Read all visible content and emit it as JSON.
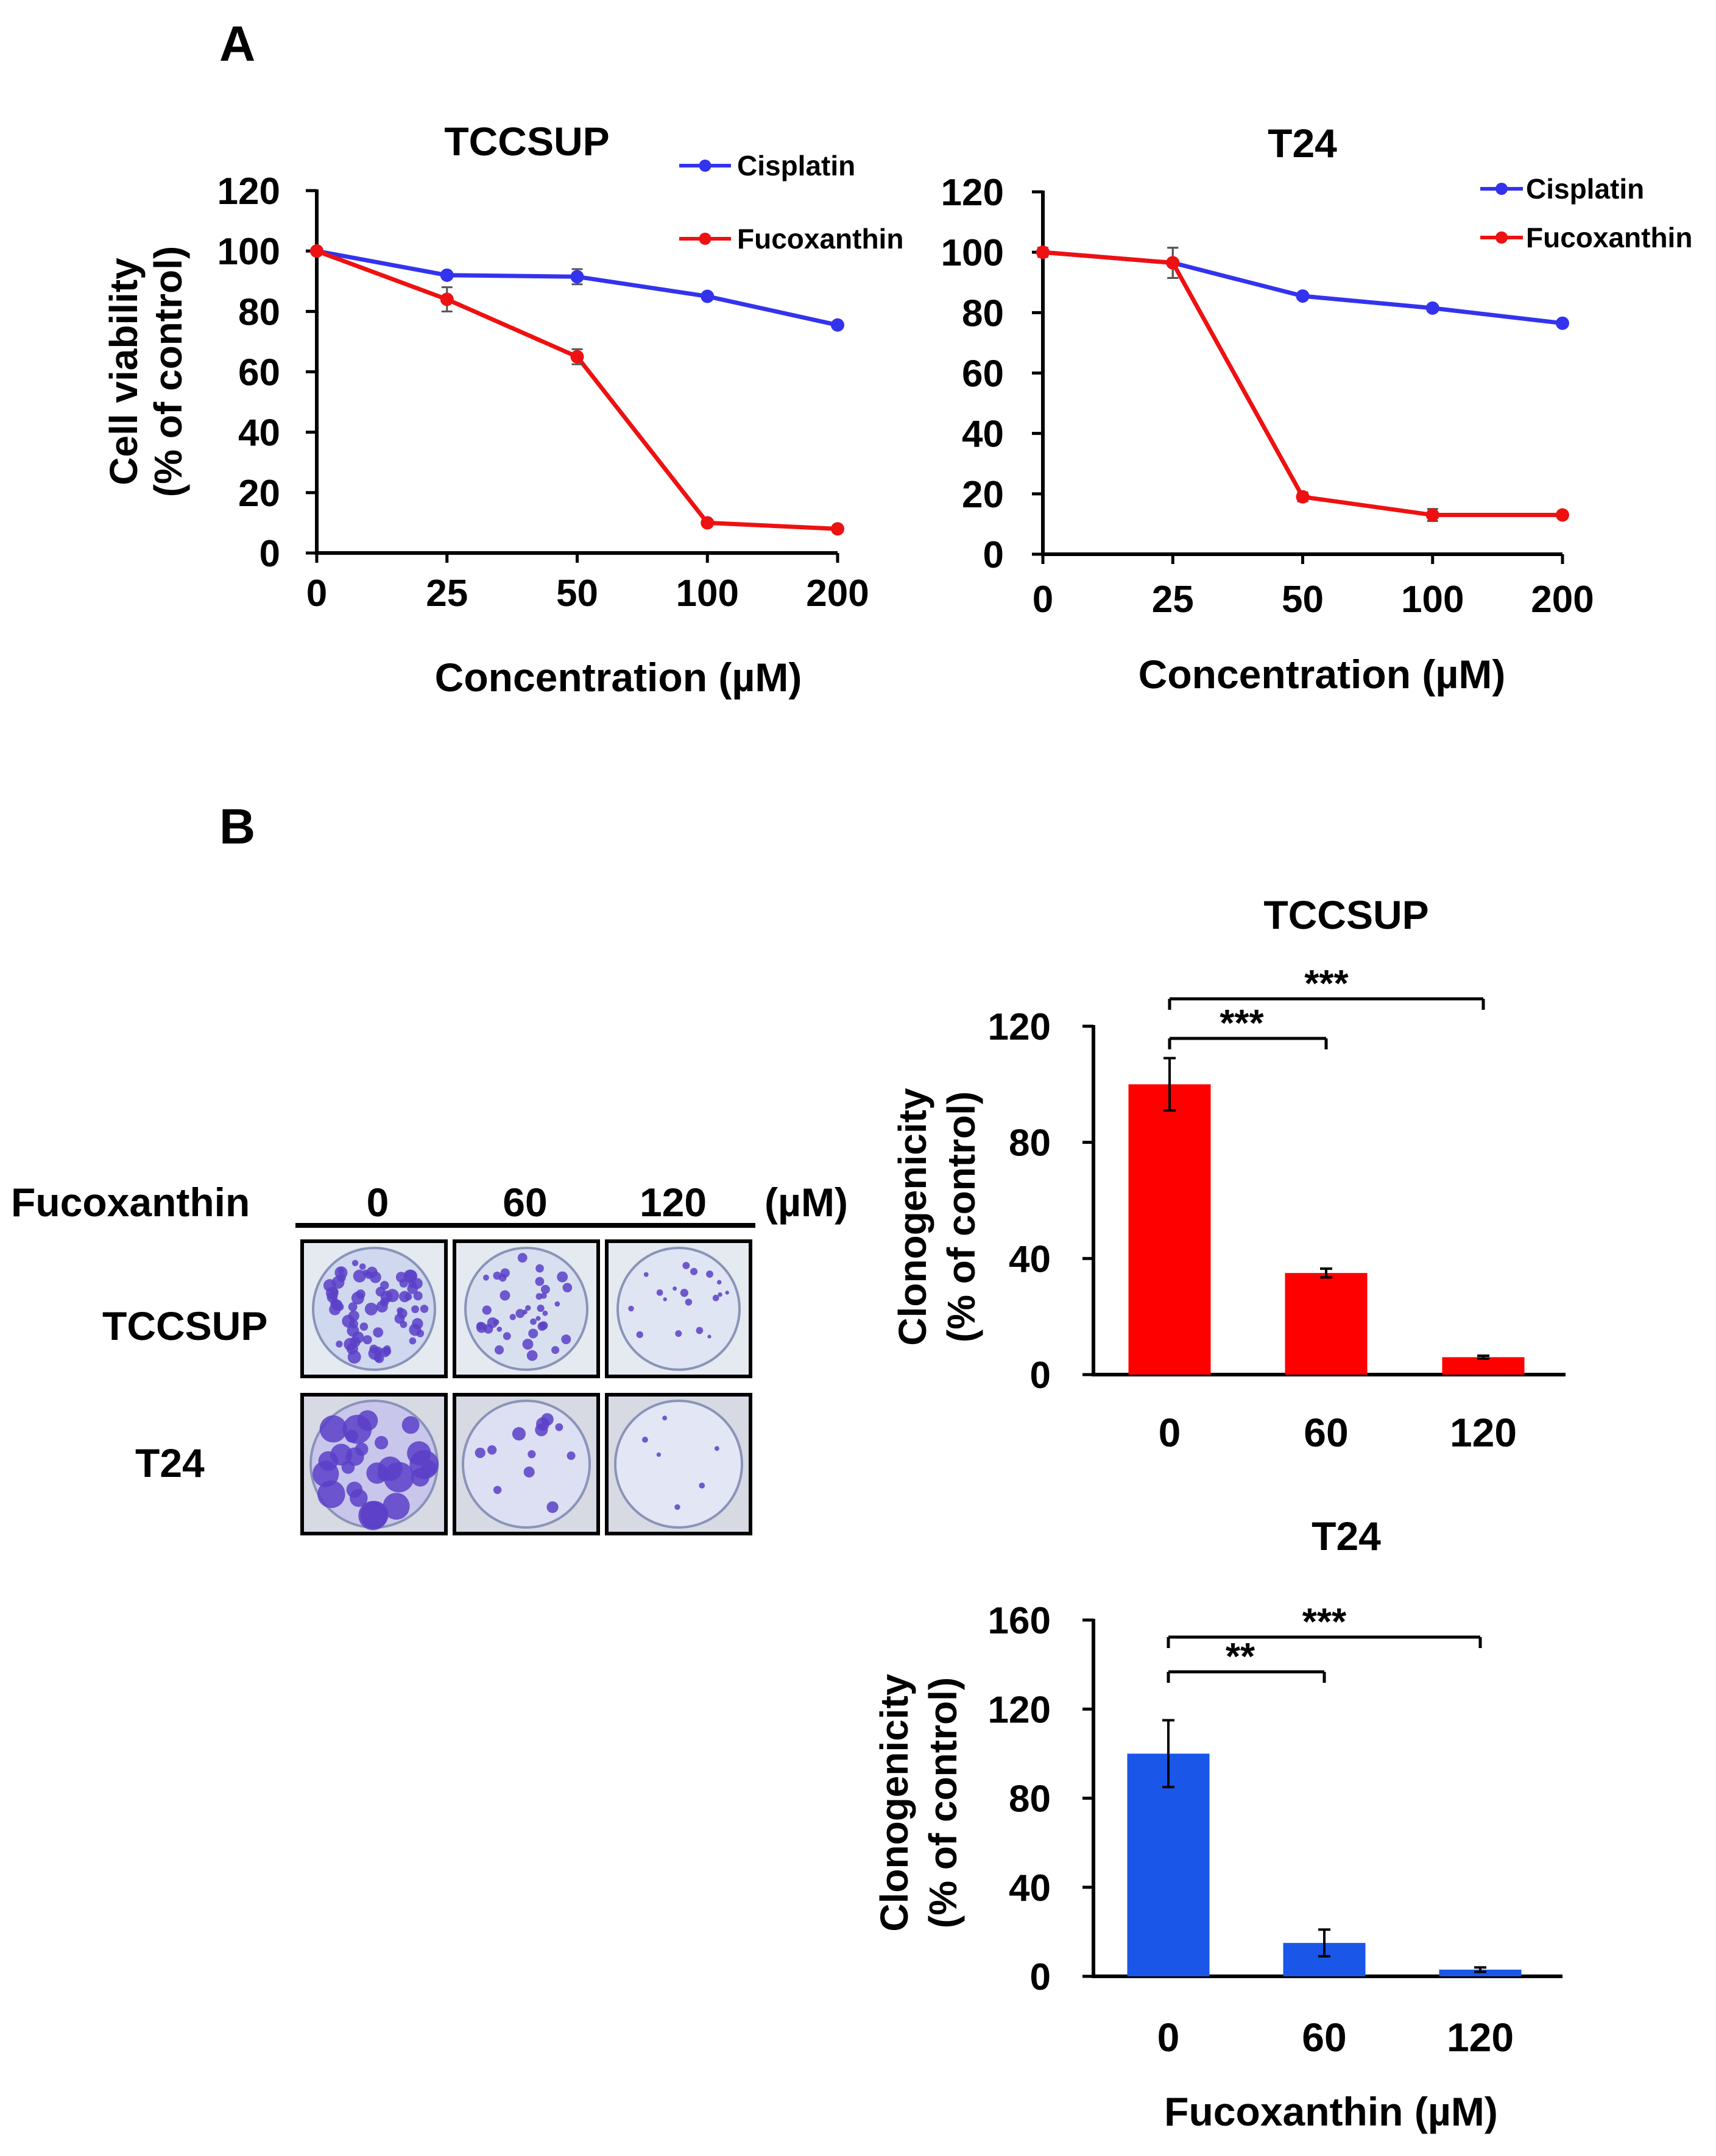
{
  "panels": {
    "a": "A",
    "b": "B"
  },
  "colors": {
    "cisplatin": "#3333ee",
    "fucoxanthin": "#ee1111",
    "bar_red": "#ff0000",
    "bar_blue": "#1a56e8",
    "plate_stain": "#5a3fc8"
  },
  "plate_grid": {
    "treatment_label": "Fucoxanthin",
    "unit": "(µM)",
    "concentrations": [
      "0",
      "60",
      "120"
    ],
    "rows": [
      "TCCSUP",
      "T24"
    ]
  },
  "chart_data": [
    {
      "id": "viability-tccsup",
      "type": "line",
      "title": "TCCSUP",
      "xlabel": "Concentration (µM)",
      "ylabel_line1": "Cell viability",
      "ylabel_line2": "(% of control)",
      "categories": [
        "0",
        "25",
        "50",
        "100",
        "200"
      ],
      "ylim": [
        0,
        120
      ],
      "yticks": [
        "0",
        "20",
        "40",
        "60",
        "80",
        "100",
        "120"
      ],
      "legend_position": "top-right",
      "series": [
        {
          "name": "Cisplatin",
          "color_key": "cisplatin",
          "values": [
            100,
            92,
            91.5,
            85,
            75.5
          ],
          "errors": [
            1,
            1,
            2.5,
            1,
            0.8
          ]
        },
        {
          "name": "Fucoxanthin",
          "color_key": "fucoxanthin",
          "values": [
            100,
            84,
            65,
            10,
            8
          ],
          "errors": [
            1,
            4,
            2.5,
            0.8,
            0.8
          ]
        }
      ]
    },
    {
      "id": "viability-t24",
      "type": "line",
      "title": "T24",
      "xlabel": "Concentration (µM)",
      "ylabel_line1": "",
      "ylabel_line2": "",
      "categories": [
        "0",
        "25",
        "50",
        "100",
        "200"
      ],
      "ylim": [
        0,
        120
      ],
      "yticks": [
        "0",
        "20",
        "40",
        "60",
        "80",
        "100",
        "120"
      ],
      "legend_position": "top-right",
      "series": [
        {
          "name": "Cisplatin",
          "color_key": "cisplatin",
          "values": [
            100,
            96.5,
            85.5,
            81.5,
            76.5
          ],
          "errors": [
            1.5,
            5,
            1,
            1,
            1
          ]
        },
        {
          "name": "Fucoxanthin",
          "color_key": "fucoxanthin",
          "values": [
            100,
            96.5,
            19,
            13,
            13
          ],
          "errors": [
            1.5,
            5,
            1.5,
            2,
            0.8
          ]
        }
      ]
    },
    {
      "id": "clonogenicity-tccsup",
      "type": "bar",
      "title": "TCCSUP",
      "xlabel": "",
      "ylabel_line1": "Clonogenicity",
      "ylabel_line2": "(% of control)",
      "categories": [
        "0",
        "60",
        "120"
      ],
      "values": [
        100,
        35,
        6
      ],
      "errors": [
        9,
        1.5,
        0.5
      ],
      "color_key": "bar_red",
      "ylim": [
        0,
        120
      ],
      "yticks": [
        "0",
        "40",
        "80",
        "120"
      ],
      "significance": [
        {
          "from": 0,
          "to": 1,
          "label": "***"
        },
        {
          "from": 0,
          "to": 2,
          "label": "***"
        }
      ]
    },
    {
      "id": "clonogenicity-t24",
      "type": "bar",
      "title": "T24",
      "xlabel": "Fucoxanthin (µM)",
      "ylabel_line1": "Clonogenicity",
      "ylabel_line2": "(% of control)",
      "categories": [
        "0",
        "60",
        "120"
      ],
      "values": [
        100,
        15,
        3
      ],
      "errors": [
        15,
        6,
        1
      ],
      "color_key": "bar_blue",
      "ylim": [
        0,
        160
      ],
      "yticks": [
        "0",
        "40",
        "80",
        "120",
        "160"
      ],
      "significance": [
        {
          "from": 0,
          "to": 1,
          "label": "**"
        },
        {
          "from": 0,
          "to": 2,
          "label": "***"
        }
      ]
    }
  ]
}
